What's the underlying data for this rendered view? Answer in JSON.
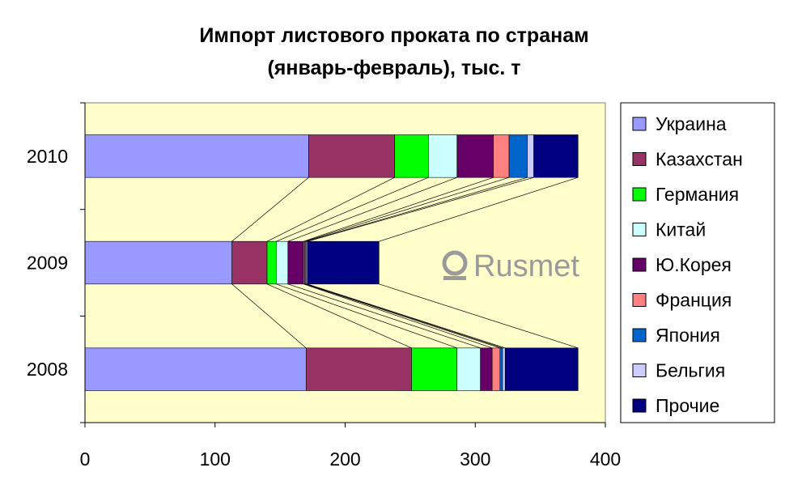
{
  "chart_data": {
    "type": "bar",
    "stacked": true,
    "orientation": "horizontal",
    "title": [
      "Импорт листового проката по странам",
      "(январь-февраль), тыс. т"
    ],
    "categories": [
      "2010",
      "2009",
      "2008"
    ],
    "xlim": [
      0,
      400
    ],
    "x_ticks": [
      "0",
      "100",
      "200",
      "300",
      "400"
    ],
    "legend_position": "right",
    "series": [
      {
        "name": "Украина",
        "color": "#9999ff",
        "values": [
          172,
          113,
          170
        ]
      },
      {
        "name": "Казахстан",
        "color": "#993366",
        "values": [
          66,
          27,
          81
        ]
      },
      {
        "name": "Германия",
        "color": "#00ff00",
        "values": [
          26,
          7,
          35
        ]
      },
      {
        "name": "Китай",
        "color": "#ccffff",
        "values": [
          22,
          9,
          18
        ]
      },
      {
        "name": "Ю.Корея",
        "color": "#660066",
        "values": [
          28,
          12,
          9
        ]
      },
      {
        "name": "Франция",
        "color": "#ff8080",
        "values": [
          12,
          1,
          6
        ]
      },
      {
        "name": "Япония",
        "color": "#0066cc",
        "values": [
          14,
          1,
          2
        ]
      },
      {
        "name": "Бельгия",
        "color": "#ccccff",
        "values": [
          5,
          1,
          2
        ]
      },
      {
        "name": "Прочие",
        "color": "#000080",
        "values": [
          34,
          55,
          56
        ]
      }
    ]
  },
  "watermark": "Rusmet",
  "colors": {
    "plot_background": "#ffffcc",
    "connector_line": "#000000"
  }
}
